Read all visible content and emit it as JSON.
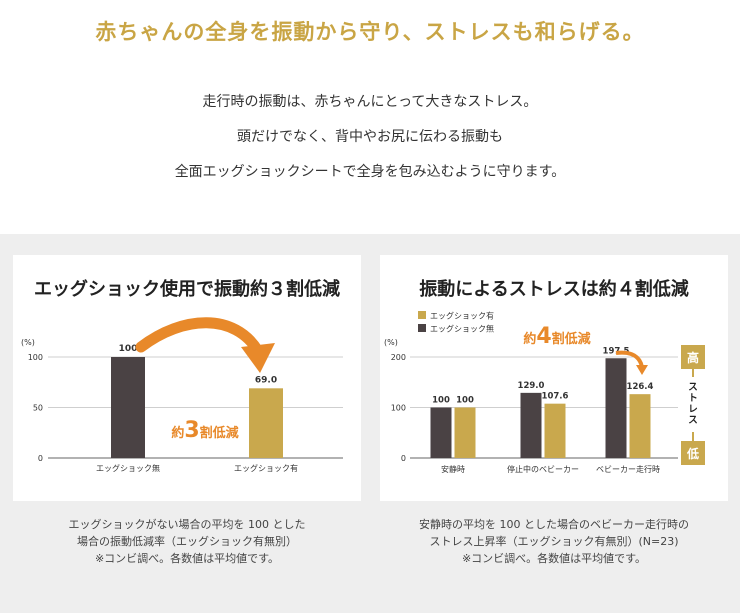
{
  "headline": "赤ちゃんの全身を振動から守り、ストレスも和らげる。",
  "intro": [
    "走行時の振動は、赤ちゃんにとって大きなストレス。",
    "頭だけでなく、背中やお尻に伝わる振動も",
    "全面エッグショックシートで全身を包み込むように守ります。"
  ],
  "colors": {
    "accent": "#c9a545",
    "dark_bar": "#4a4244",
    "gold_bar": "#c9a84d",
    "arrow": "#e8892a"
  },
  "chart_data": [
    {
      "type": "bar",
      "title": "エッグショック使用で振動約３割低減",
      "ylabel": "(%)",
      "ylim": [
        0,
        100
      ],
      "yticks": [
        "100",
        "50",
        "0"
      ],
      "categories": [
        "エッグショック無",
        "エッグショック有"
      ],
      "values": [
        100,
        69.0
      ],
      "value_labels": [
        "100",
        "69.0"
      ],
      "bar_colors": [
        "#4a4244",
        "#c9a84d"
      ],
      "callout": {
        "prefix": "約",
        "number": "3",
        "suffix": "割低減"
      },
      "grid": true
    },
    {
      "type": "bar",
      "title": "振動によるストレスは約４割低減",
      "ylabel": "(%)",
      "ylim": [
        0,
        200
      ],
      "yticks": [
        "200",
        "100",
        "0"
      ],
      "categories": [
        "安静時",
        "停止中のベビーカー",
        "ベビーカー走行時"
      ],
      "series": [
        {
          "name": "エッグショック無",
          "color": "#4a4244",
          "values": [
            100,
            129.0,
            197.5
          ],
          "labels": [
            "100",
            "129.0",
            "197.5"
          ]
        },
        {
          "name": "エッグショック有",
          "color": "#c9a84d",
          "values": [
            100,
            107.6,
            126.4
          ],
          "labels": [
            "100",
            "107.6",
            "126.4"
          ]
        }
      ],
      "legend": [
        "エッグショック有",
        "エッグショック無"
      ],
      "legend_position": "top-left",
      "callout": {
        "prefix": "約",
        "number": "4",
        "suffix": "割低減"
      },
      "stress_scale": {
        "high": "高",
        "label": "ストレス",
        "low": "低"
      },
      "grid": true
    }
  ],
  "captions": {
    "left": [
      "エッグショックがない場合の平均を 100 とした",
      "場合の振動低減率（エッグショック有無別）",
      "※コンビ調べ。各数値は平均値です。"
    ],
    "right": [
      "安静時の平均を 100 とした場合のベビーカー走行時の",
      "ストレス上昇率（エッグショック有無別）(N=23)",
      "※コンビ調べ。各数値は平均値です。"
    ]
  }
}
